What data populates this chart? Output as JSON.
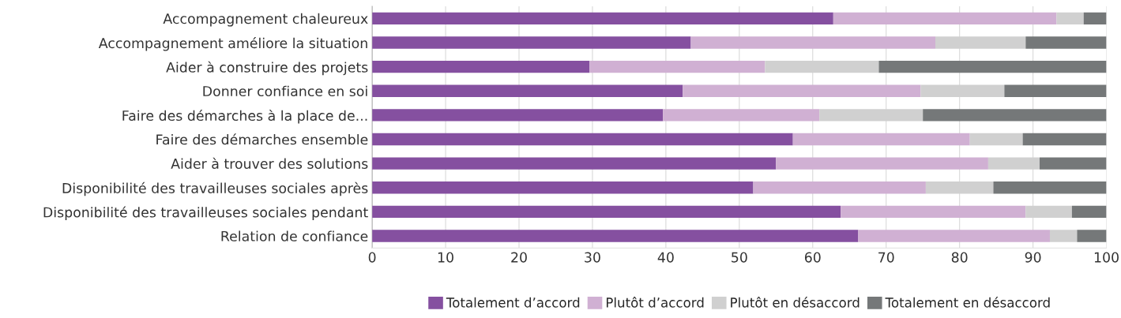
{
  "chart_data": {
    "type": "bar",
    "orientation": "horizontal",
    "stacked": true,
    "categories": [
      "Accompagnement chaleureux",
      "Accompagnement améliore la situation",
      "Aider à construire des projets",
      "Donner confiance en soi",
      "Faire des démarches à la place de...",
      "Faire des démarches ensemble",
      "Aider à trouver des solutions",
      "Disponibilité des travailleuses sociales après",
      "Disponibilité des travailleuses sociales pendant",
      "Relation de confiance"
    ],
    "series": [
      {
        "name": "Totalement d’accord",
        "color": "#8550a0",
        "values": [
          62.8,
          43.4,
          29.6,
          42.3,
          39.6,
          57.3,
          55.0,
          51.9,
          63.8,
          66.2
        ]
      },
      {
        "name": "Plutôt d’accord",
        "color": "#d0b0d3",
        "values": [
          30.4,
          33.3,
          23.9,
          32.4,
          21.3,
          24.1,
          28.9,
          23.5,
          25.2,
          26.1
        ]
      },
      {
        "name": "Plutôt en désaccord",
        "color": "#d0d0d0",
        "values": [
          3.7,
          12.3,
          15.5,
          11.4,
          14.1,
          7.2,
          7.0,
          9.2,
          6.3,
          3.7
        ]
      },
      {
        "name": "Totalement en désaccord",
        "color": "#757879",
        "values": [
          3.1,
          11.0,
          31.0,
          13.9,
          25.0,
          11.4,
          9.1,
          15.4,
          4.7,
          4.0
        ]
      }
    ],
    "xlim": [
      0,
      100
    ],
    "xticks": [
      0,
      10,
      20,
      30,
      40,
      50,
      60,
      70,
      80,
      90,
      100
    ],
    "grid": "x",
    "legend": "bottom"
  }
}
